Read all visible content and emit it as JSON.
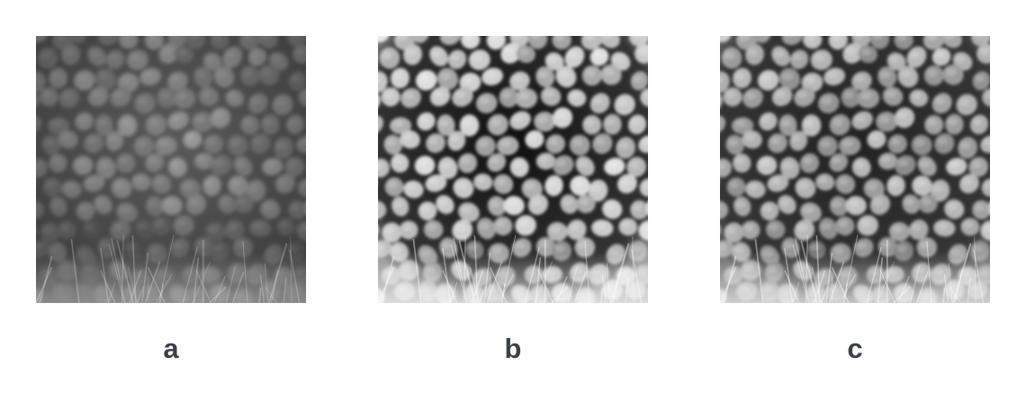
{
  "panels": [
    {
      "label": "a"
    },
    {
      "label": "b"
    },
    {
      "label": "c"
    }
  ],
  "colors": {
    "background": "#ffffff",
    "label_text": "#3a3f4b"
  }
}
